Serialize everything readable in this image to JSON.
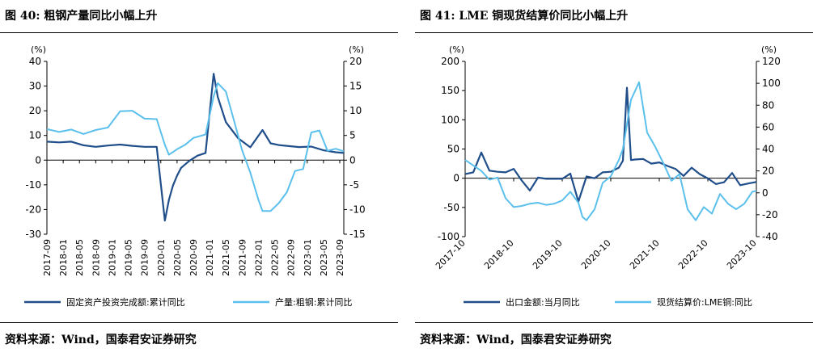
{
  "charts": [
    {
      "figure_title": "图 40: 粗钢产量同比小幅上升",
      "source": "资料来源：Wind，国泰君安证券研究",
      "left_unit": "(%)",
      "right_unit": "(%)",
      "legend": [
        "固定资产投资完成额:累计同比",
        "产量:粗钢:累计同比"
      ]
    },
    {
      "figure_title": "图 41: LME 铜现货结算价同比小幅上升",
      "source": "资料来源：Wind，国泰君安证券研究",
      "left_unit": "(%)",
      "right_unit": "(%)",
      "legend": [
        "出口金额:当月同比",
        "现货结算价:LME铜:同比"
      ]
    }
  ],
  "chart_data": [
    {
      "type": "line",
      "title": "",
      "x_ticks": [
        "2017-09",
        "2018-01",
        "2018-05",
        "2018-09",
        "2019-01",
        "2019-05",
        "2019-09",
        "2020-01",
        "2020-05",
        "2020-09",
        "2021-01",
        "2021-05",
        "2021-09",
        "2022-01",
        "2022-05",
        "2022-09",
        "2023-01",
        "2023-05",
        "2023-09"
      ],
      "x_range": [
        "2017-09",
        "2023-10"
      ],
      "y_left": {
        "min": -30,
        "max": 40,
        "ticks": [
          -30,
          -20,
          -10,
          0,
          10,
          20,
          30,
          40
        ]
      },
      "y_right": {
        "min": -15,
        "max": 20,
        "ticks": [
          -15,
          -10,
          -5,
          0,
          5,
          10,
          15,
          20
        ]
      },
      "grid": false,
      "legend_position": "bottom",
      "colors": {
        "dark": "#1f4e8a",
        "light": "#5bc0eb"
      },
      "series": [
        {
          "name": "固定资产投资完成额:累计同比",
          "axis": "left",
          "color": "#1f4e8a",
          "x": [
            "2017-09",
            "2017-12",
            "2018-03",
            "2018-06",
            "2018-09",
            "2018-12",
            "2019-03",
            "2019-06",
            "2019-09",
            "2019-12",
            "2020-02",
            "2020-03",
            "2020-04",
            "2020-05",
            "2020-06",
            "2020-08",
            "2020-10",
            "2020-12",
            "2021-02",
            "2021-03",
            "2021-05",
            "2021-08",
            "2021-11",
            "2022-02",
            "2022-04",
            "2022-06",
            "2022-08",
            "2022-11",
            "2023-02",
            "2023-05",
            "2023-08",
            "2023-10"
          ],
          "values": [
            7.5,
            7.2,
            7.5,
            6,
            5.4,
            5.9,
            6.3,
            5.8,
            5.4,
            5.4,
            -24.5,
            -16.1,
            -10.3,
            -6.3,
            -3.1,
            -0.3,
            1.8,
            2.9,
            35,
            25.6,
            15.4,
            8.9,
            5.2,
            12.2,
            6.8,
            6.1,
            5.8,
            5.3,
            5.5,
            4,
            3.2,
            2.9
          ]
        },
        {
          "name": "产量:粗钢:累计同比",
          "axis": "right",
          "color": "#5bc0eb",
          "x": [
            "2017-09",
            "2017-12",
            "2018-03",
            "2018-06",
            "2018-09",
            "2018-12",
            "2019-03",
            "2019-06",
            "2019-09",
            "2019-12",
            "2020-02",
            "2020-03",
            "2020-05",
            "2020-07",
            "2020-09",
            "2020-12",
            "2021-02",
            "2021-03",
            "2021-05",
            "2021-07",
            "2021-09",
            "2021-11",
            "2022-01",
            "2022-02",
            "2022-04",
            "2022-06",
            "2022-08",
            "2022-10",
            "2022-12",
            "2023-02",
            "2023-04",
            "2023-06",
            "2023-08",
            "2023-10"
          ],
          "values": [
            6.3,
            5.7,
            6.2,
            5.3,
            6.1,
            6.6,
            9.9,
            10,
            8.4,
            8.3,
            3.1,
            1.1,
            2.2,
            3.1,
            4.5,
            5.2,
            12.9,
            15.6,
            13.9,
            8.0,
            2.0,
            -2.5,
            -8,
            -10.3,
            -10.3,
            -8.7,
            -6.5,
            -2.2,
            -1.8,
            5.6,
            6.0,
            1.9,
            2.3,
            1.8
          ]
        }
      ]
    },
    {
      "type": "line",
      "title": "",
      "x_ticks": [
        "2017-10",
        "2018-10",
        "2019-10",
        "2020-10",
        "2021-10",
        "2022-10",
        "2023-10"
      ],
      "x_range": [
        "2017-10",
        "2023-10"
      ],
      "y_left": {
        "min": -100,
        "max": 200,
        "ticks": [
          -100,
          -50,
          0,
          50,
          100,
          150,
          200
        ]
      },
      "y_right": {
        "min": -40,
        "max": 120,
        "ticks": [
          -40,
          -20,
          0,
          20,
          40,
          60,
          80,
          100,
          120
        ]
      },
      "grid": false,
      "legend_position": "bottom",
      "colors": {
        "dark": "#1f4e8a",
        "light": "#5bc0eb"
      },
      "series": [
        {
          "name": "出口金额:当月同比",
          "axis": "left",
          "color": "#1f4e8a",
          "x": [
            "2017-10",
            "2017-12",
            "2018-02",
            "2018-04",
            "2018-06",
            "2018-08",
            "2018-10",
            "2018-12",
            "2019-02",
            "2019-04",
            "2019-06",
            "2019-08",
            "2019-10",
            "2019-12",
            "2020-02",
            "2020-04",
            "2020-06",
            "2020-08",
            "2020-10",
            "2020-12",
            "2021-01",
            "2021-02",
            "2021-03",
            "2021-04",
            "2021-06",
            "2021-08",
            "2021-10",
            "2021-12",
            "2022-02",
            "2022-04",
            "2022-06",
            "2022-08",
            "2022-10",
            "2022-12",
            "2023-02",
            "2023-04",
            "2023-06",
            "2023-08",
            "2023-10"
          ],
          "values": [
            7,
            10,
            44,
            13,
            11,
            10,
            16,
            -4,
            -21,
            1,
            -1,
            -1,
            -1,
            8,
            -40,
            3,
            0,
            10,
            11,
            18,
            30,
            155,
            31,
            32,
            33,
            25,
            27,
            21,
            16,
            4,
            18,
            7,
            -0.3,
            -10,
            -7,
            9,
            -12,
            -9,
            -6.4
          ]
        },
        {
          "name": "现货结算价:LME铜:同比",
          "axis": "right",
          "color": "#5bc0eb",
          "x": [
            "2017-10",
            "2017-12",
            "2018-02",
            "2018-04",
            "2018-06",
            "2018-08",
            "2018-10",
            "2018-12",
            "2019-02",
            "2019-04",
            "2019-06",
            "2019-08",
            "2019-10",
            "2019-12",
            "2020-02",
            "2020-03",
            "2020-04",
            "2020-06",
            "2020-08",
            "2020-10",
            "2020-12",
            "2021-01",
            "2021-03",
            "2021-05",
            "2021-07",
            "2021-09",
            "2021-11",
            "2022-01",
            "2022-03",
            "2022-05",
            "2022-07",
            "2022-09",
            "2022-11",
            "2023-01",
            "2023-03",
            "2023-05",
            "2023-07",
            "2023-09",
            "2023-10"
          ],
          "values": [
            30,
            25,
            20,
            12,
            14,
            -5,
            -13,
            -12,
            -10,
            -9,
            -11,
            -10,
            -7,
            1,
            -9,
            -22,
            -25,
            -15,
            9,
            15,
            30,
            40,
            85,
            101,
            55,
            42,
            27,
            11,
            17,
            -15,
            -25,
            -13,
            -19,
            -1,
            -10,
            -15,
            -10,
            1,
            1.8
          ]
        }
      ]
    }
  ]
}
